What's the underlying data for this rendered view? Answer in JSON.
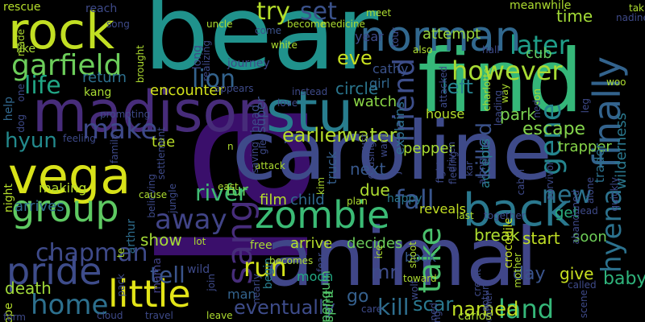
{
  "words": {
    "la": {
      "text": "la",
      "color": "#3a0f6b"
    },
    "bear": {
      "text": "bear",
      "color": "#20928c"
    },
    "find": {
      "text": "find",
      "color": "#35b779"
    },
    "caroline": {
      "text": "caroline",
      "color": "#3e4a89"
    },
    "animal": {
      "text": "animal",
      "color": "#404688"
    },
    "madison": {
      "text": "madison",
      "color": "#472c7a"
    },
    "stu": {
      "text": "stu",
      "color": "#287d8e"
    },
    "rock": {
      "text": "rock",
      "color": "#c2df23"
    },
    "vega": {
      "text": "vega",
      "color": "#d8e219"
    },
    "norman": {
      "text": "norman",
      "color": "#31688e"
    },
    "zombie": {
      "text": "zombie",
      "color": "#3bbb75"
    },
    "back": {
      "text": "back",
      "color": "#2a788e"
    },
    "finally": {
      "text": "finally",
      "color": "#33638d"
    },
    "hyena": {
      "text": "hyena",
      "color": "#2c728e"
    },
    "little": {
      "text": "little",
      "color": "#e2e418"
    },
    "pride": {
      "text": "pride",
      "color": "#3e4c8a"
    },
    "group": {
      "text": "group",
      "color": "#5ec962"
    },
    "garfield": {
      "text": "garfield",
      "color": "#6ccd5a"
    },
    "sang": {
      "text": "sang",
      "color": "#472d7b"
    },
    "home": {
      "text": "home",
      "color": "#2d708e"
    },
    "land": {
      "text": "land",
      "color": "#35b779"
    },
    "gene": {
      "text": "gene",
      "color": "#25858e"
    },
    "friend": {
      "text": "friend",
      "color": "#3d4e8a"
    },
    "take": {
      "text": "take",
      "color": "#4ac16d"
    },
    "however": {
      "text": "however",
      "color": "#a8db34"
    },
    "later": {
      "text": "later",
      "color": "#1f9e89"
    },
    "lion": {
      "text": "lion",
      "color": "#33638d"
    },
    "try": {
      "text": "try",
      "color": "#b5de2b"
    },
    "set": {
      "text": "set",
      "color": "#3b528b"
    },
    "make": {
      "text": "make",
      "color": "#3e4989"
    },
    "life": {
      "text": "life",
      "color": "#21a685"
    },
    "away": {
      "text": "away",
      "color": "#414487"
    },
    "fall": {
      "text": "fall",
      "color": "#39558c"
    },
    "new": {
      "text": "new",
      "color": "#2c738e"
    },
    "run": {
      "text": "run",
      "color": "#d2e21b"
    },
    "kill": {
      "text": "kill",
      "color": "#2e6e8e"
    },
    "chapman": {
      "text": "chapman",
      "color": "#3e4a89"
    },
    "hyun": {
      "text": "hyun",
      "color": "#238a8d"
    },
    "river": {
      "text": "river",
      "color": "#3fbc73"
    },
    "tell": {
      "text": "tell",
      "color": "#3a548c"
    },
    "eventually": {
      "text": "eventually",
      "color": "#3e4c8a"
    },
    "named": {
      "text": "named",
      "color": "#c0df25"
    },
    "scar": {
      "text": "scar",
      "color": "#2a788e"
    },
    "show": {
      "text": "show",
      "color": "#a5db36"
    },
    "killed": {
      "text": "killed",
      "color": "#3b528b"
    },
    "left": {
      "text": "left",
      "color": "#26828e"
    },
    "time": {
      "text": "time",
      "color": "#a2da37"
    },
    "eve": {
      "text": "eve",
      "color": "#c8e020"
    },
    "earlier": {
      "text": "earlier",
      "color": "#b8de29"
    },
    "water": {
      "text": "water",
      "color": "#addc30"
    },
    "escape": {
      "text": "escape",
      "color": "#84d44b"
    },
    "day": {
      "text": "day",
      "color": "#3a548c"
    },
    "baby": {
      "text": "baby",
      "color": "#2fb47c"
    },
    "soon": {
      "text": "soon",
      "color": "#6ece58"
    },
    "give": {
      "text": "give",
      "color": "#c8e020"
    },
    "encounter": {
      "text": "encounter",
      "color": "#d2e21b"
    },
    "return": {
      "text": "return",
      "color": "#2d708e"
    },
    "watch": {
      "text": "watch",
      "color": "#8bd646"
    },
    "attempt": {
      "text": "attempt",
      "color": "#9bd93c"
    },
    "circle": {
      "text": "circle",
      "color": "#2a768e"
    },
    "cub": {
      "text": "cub",
      "color": "#63cb5f"
    },
    "park": {
      "text": "park",
      "color": "#7ad151"
    },
    "mr": {
      "text": "mr",
      "color": "#3e4c8a"
    },
    "go": {
      "text": "go",
      "color": "#35608d"
    },
    "next": {
      "text": "next",
      "color": "#38588c"
    },
    "due": {
      "text": "due",
      "color": "#addc30"
    },
    "child": {
      "text": "child",
      "color": "#30698e"
    },
    "film": {
      "text": "film",
      "color": "#b5de2b"
    },
    "fur": {
      "text": "fur",
      "color": "#63cb5f"
    },
    "tae": {
      "text": "tae",
      "color": "#b8de29"
    },
    "death": {
      "text": "death",
      "color": "#a0da39"
    },
    "arrives": {
      "text": "arrives",
      "color": "#2f6c8e"
    },
    "break": {
      "text": "break",
      "color": "#addc30"
    },
    "start": {
      "text": "start",
      "color": "#c0df25"
    },
    "decides": {
      "text": "decides",
      "color": "#6ccd5a"
    },
    "arrive": {
      "text": "arrive",
      "color": "#b5de2b"
    },
    "get": {
      "text": "get",
      "color": "#29af7f"
    },
    "pepper": {
      "text": "pepper",
      "color": "#a8db34"
    },
    "trapper": {
      "text": "trapper",
      "color": "#86d549"
    },
    "wilderness": {
      "text": "wilderness",
      "color": "#2a788e"
    },
    "trader": {
      "text": "trader",
      "color": "#2c728e"
    },
    "girl": {
      "text": "girl",
      "color": "#31688e"
    },
    "cathy": {
      "text": "cathy",
      "color": "#3b528b"
    },
    "year": {
      "text": "year",
      "color": "#3e4a89"
    },
    "super": {
      "text": "super",
      "color": "#3b528b"
    },
    "truck": {
      "text": "truck",
      "color": "#35608d"
    },
    "penguin": {
      "text": "penguin",
      "color": "#52c569"
    },
    "spirit": {
      "text": "spirit",
      "color": "#52c569"
    },
    "moon": {
      "text": "moon",
      "color": "#22a884"
    },
    "book": {
      "text": "book",
      "color": "#37598c"
    },
    "reveals": {
      "text": "reveals",
      "color": "#c2df23"
    },
    "crocodile": {
      "text": "crocodile",
      "color": "#c8e020"
    },
    "accepts": {
      "text": "accepts",
      "color": "#27808e"
    },
    "explains": {
      "text": "explains",
      "color": "#2e6f8e"
    },
    "house": {
      "text": "house",
      "color": "#b5de2b"
    },
    "happy": {
      "text": "happy",
      "color": "#2a768e"
    },
    "mama": {
      "text": "mama",
      "color": "#424086"
    },
    "arthur": {
      "text": "arthur",
      "color": "#2e6e8e"
    },
    "free": {
      "text": "free",
      "color": "#a8db34"
    },
    "begin": {
      "text": "begin",
      "color": "#287d8e"
    },
    "man": {
      "text": "man",
      "color": "#33638d"
    },
    "head": {
      "text": "head",
      "color": "#3e4a89"
    },
    "making": {
      "text": "making",
      "color": "#b5de2b"
    },
    "help": {
      "text": "help",
      "color": "#31688e"
    },
    "night": {
      "text": "night",
      "color": "#b5de2b"
    },
    "hope": {
      "text": "hope",
      "color": "#b5de2b"
    },
    "rescue": {
      "text": "rescue",
      "color": "#b5de2b"
    },
    "reach": {
      "text": "reach",
      "color": "#3e4a89"
    },
    "song": {
      "text": "song",
      "color": "#3e4a89"
    },
    "like": {
      "text": "like",
      "color": "#a8db34"
    },
    "kang": {
      "text": "kang",
      "color": "#a8db34"
    },
    "long": {
      "text": "long",
      "color": "#3e4a89"
    },
    "uncle": {
      "text": "uncle",
      "color": "#addc30"
    },
    "come": {
      "text": "come",
      "color": "#3b528b"
    },
    "journey": {
      "text": "journey",
      "color": "#3e4a89"
    },
    "white": {
      "text": "white",
      "color": "#addc30"
    },
    "become": {
      "text": "become",
      "color": "#addc30"
    },
    "medicine": {
      "text": "medicine",
      "color": "#addc30"
    },
    "meet": {
      "text": "meet",
      "color": "#addc30"
    },
    "meanwhile": {
      "text": "meanwhile",
      "color": "#addc30"
    },
    "nadine": {
      "text": "nadine",
      "color": "#3e4a89"
    },
    "taking": {
      "text": "taking",
      "color": "#addc30"
    },
    "also": {
      "text": "also",
      "color": "#addc30"
    },
    "attacked": {
      "text": "attacked",
      "color": "#3e4a89"
    },
    "charlotte": {
      "text": "charlotte",
      "color": "#addc30"
    },
    "hall": {
      "text": "hall",
      "color": "#3e4a89"
    },
    "woo": {
      "text": "woo",
      "color": "#addc30"
    },
    "son": {
      "text": "son",
      "color": "#addc30"
    },
    "ned": {
      "text": "ned",
      "color": "#3e4a89"
    },
    "survivor": {
      "text": "survivor",
      "color": "#3e4a89"
    },
    "alone": {
      "text": "alone",
      "color": "#3e4a89"
    },
    "abandoned": {
      "text": "abandoned",
      "color": "#3e4a89"
    },
    "quickly": {
      "text": "quickly",
      "color": "#3e4a89"
    },
    "lead": {
      "text": "lead",
      "color": "#3e4a89"
    },
    "last": {
      "text": "last",
      "color": "#addc30"
    },
    "together": {
      "text": "together",
      "color": "#3e4a89"
    },
    "cabin": {
      "text": "cabin",
      "color": "#3e4a89"
    },
    "along": {
      "text": "along",
      "color": "#3e4a89"
    },
    "mother": {
      "text": "mother",
      "color": "#addc30"
    },
    "called": {
      "text": "called",
      "color": "#3e4a89"
    },
    "scene": {
      "text": "scene",
      "color": "#3e4a89"
    },
    "capture": {
      "text": "capture",
      "color": "#3e4a89"
    },
    "brother": {
      "text": "brother",
      "color": "#3e4a89"
    },
    "credit": {
      "text": "credit",
      "color": "#3e4a89"
    },
    "toward": {
      "text": "toward",
      "color": "#addc30"
    },
    "wolf": {
      "text": "wolf",
      "color": "#3e4a89"
    },
    "joined": {
      "text": "joined",
      "color": "#3e4a89"
    },
    "using": {
      "text": "using",
      "color": "#3e4a89"
    },
    "carlos": {
      "text": "carlos",
      "color": "#addc30"
    },
    "care": {
      "text": "care",
      "color": "#3e4a89"
    },
    "ice": {
      "text": "ice",
      "color": "#addc30"
    },
    "fear": {
      "text": "fear",
      "color": "#3e4a89"
    },
    "shoot": {
      "text": "shoot",
      "color": "#addc30"
    },
    "jon": {
      "text": "jon",
      "color": "#3e4a89"
    },
    "kim": {
      "text": "kim",
      "color": "#addc30"
    },
    "plan": {
      "text": "plan",
      "color": "#addc30"
    },
    "nearly": {
      "text": "nearly",
      "color": "#3e4a89"
    },
    "becomes": {
      "text": "becomes",
      "color": "#addc30"
    },
    "join": {
      "text": "join",
      "color": "#3e4a89"
    },
    "wild": {
      "text": "wild",
      "color": "#3e4a89"
    },
    "lot": {
      "text": "lot",
      "color": "#addc30"
    },
    "east": {
      "text": "east",
      "color": "#addc30"
    },
    "attack": {
      "text": "attack",
      "color": "#addc30"
    },
    "glen": {
      "text": "glen",
      "color": "#3e4a89"
    },
    "love": {
      "text": "love",
      "color": "#3e4a89"
    },
    "instead": {
      "text": "instead",
      "color": "#3e4a89"
    },
    "saving": {
      "text": "saving",
      "color": "#3e4a89"
    },
    "causing": {
      "text": "causing",
      "color": "#3e4a89"
    },
    "must": {
      "text": "must",
      "color": "#3e4a89"
    },
    "want": {
      "text": "want",
      "color": "#3e4a89"
    },
    "settlement": {
      "text": "settlement",
      "color": "#3e4a89"
    },
    "appears": {
      "text": "appears",
      "color": "#3e4a89"
    },
    "realizing": {
      "text": "realizing",
      "color": "#3e4a89"
    },
    "prompting": {
      "text": "prompting",
      "color": "#3e4a89"
    },
    "believing": {
      "text": "believing",
      "color": "#3e4a89"
    },
    "jungle": {
      "text": "jungle",
      "color": "#3e4a89"
    },
    "cause": {
      "text": "cause",
      "color": "#addc30"
    },
    "family": {
      "text": "family",
      "color": "#3e4a89"
    },
    "feeling": {
      "text": "feeling",
      "color": "#3e4a89"
    },
    "dog": {
      "text": "dog",
      "color": "#3e4a89"
    },
    "one": {
      "text": "one",
      "color": "#3e4a89"
    },
    "made": {
      "text": "made",
      "color": "#addc30"
    },
    "brought": {
      "text": "brought",
      "color": "#addc30"
    },
    "te": {
      "text": "te",
      "color": "#addc30"
    },
    "pack": {
      "text": "pack",
      "color": "#3e4a89"
    },
    "cloud": {
      "text": "cloud",
      "color": "#3e4a89"
    },
    "travel": {
      "text": "travel",
      "color": "#3e4a89"
    },
    "leave": {
      "text": "leave",
      "color": "#addc30"
    },
    "form": {
      "text": "form",
      "color": "#3e4a89"
    },
    "n": {
      "text": "n",
      "color": "#addc30"
    },
    "tour": {
      "text": "tour",
      "color": "#3e4a89"
    },
    "leg": {
      "text": "leg",
      "color": "#3e4a89"
    },
    "way": {
      "text": "way",
      "color": "#addc30"
    },
    "leading": {
      "text": "leading",
      "color": "#3e4a89"
    },
    "driven": {
      "text": "driven",
      "color": "#3e4a89"
    },
    "kar": {
      "text": "kar",
      "color": "#3e4a89"
    },
    "fleeing": {
      "text": "fleeing",
      "color": "#3e4a89"
    },
    "fight": {
      "text": "fight",
      "color": "#3e4a89"
    }
  }
}
